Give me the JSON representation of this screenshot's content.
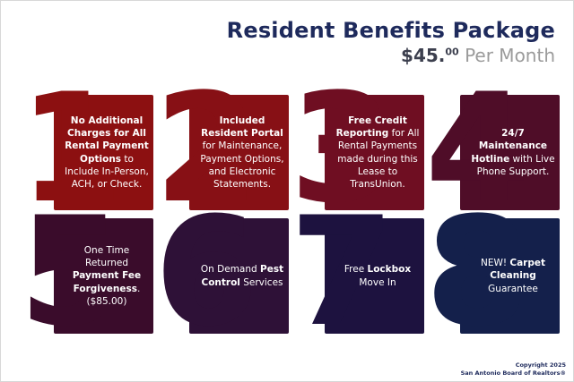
{
  "header": {
    "title": "Resident Benefits Package",
    "price_main": "$45.",
    "price_sup": "00",
    "price_rest": " Per Month"
  },
  "colors": {
    "title_navy": "#1e2a5c",
    "price_dark": "#3c3f4e",
    "price_gray": "#9b9b9b"
  },
  "cards": [
    {
      "number": "1",
      "color": "#8c1011",
      "segments": [
        {
          "t": "No Additional Charges for All Rental Payment Options",
          "b": true
        },
        {
          "t": " to Include In-Person, ACH, or Check.",
          "b": false
        }
      ]
    },
    {
      "number": "2",
      "color": "#871015",
      "segments": [
        {
          "t": "Included Resident Portal",
          "b": true
        },
        {
          "t": " for Maintenance, Payment Options, and Electronic Statements.",
          "b": false
        }
      ]
    },
    {
      "number": "3",
      "color": "#6f0e22",
      "segments": [
        {
          "t": "Free Credit Reporting",
          "b": true
        },
        {
          "t": " for All Rental Payments made during this Lease to TransUnion.",
          "b": false
        }
      ]
    },
    {
      "number": "4",
      "color": "#4f0d28",
      "segments": [
        {
          "t": "24/7 Maintenance Hotline",
          "b": true
        },
        {
          "t": " with Live Phone Support.",
          "b": false
        }
      ]
    },
    {
      "number": "5",
      "color": "#3a0c2b",
      "segments": [
        {
          "t": "One Time Returned ",
          "b": false
        },
        {
          "t": "Payment Fee Forgiveness",
          "b": true
        },
        {
          "t": ". ($85.00)",
          "b": false
        }
      ]
    },
    {
      "number": "6",
      "color": "#2e1137",
      "segments": [
        {
          "t": "On Demand ",
          "b": false
        },
        {
          "t": "Pest Control",
          "b": true
        },
        {
          "t": " Services",
          "b": false
        }
      ]
    },
    {
      "number": "7",
      "color": "#1d123f",
      "segments": [
        {
          "t": "Free ",
          "b": false
        },
        {
          "t": "Lockbox",
          "b": true
        },
        {
          "t": " Move In",
          "b": false
        }
      ]
    },
    {
      "number": "8",
      "color": "#14204b",
      "segments": [
        {
          "t": "NEW! ",
          "b": false
        },
        {
          "t": "Carpet Cleaning",
          "b": true
        },
        {
          "t": " Guarantee",
          "b": false
        }
      ]
    }
  ],
  "footer": {
    "line1": "Copyright 2025",
    "line2": "San Antonio Board of Realtors®"
  }
}
